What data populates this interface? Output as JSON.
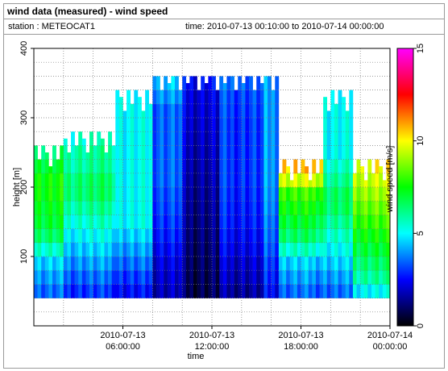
{
  "window": {
    "title": "wind data (measured) - wind speed",
    "station_label": "station : METEOCAT1",
    "time_label": "time: 2010-07-13 00:10:00 to 2010-07-14 00:00:00"
  },
  "chart_data": {
    "type": "heatmap",
    "title": "wind data (measured) - wind speed",
    "xlabel": "time",
    "ylabel": "height [m]",
    "colorbar_label": "wind speed [m/s]",
    "x_ticks": [
      {
        "value": 6,
        "line1": "2010-07-13",
        "line2": "06:00:00"
      },
      {
        "value": 12,
        "line1": "2010-07-13",
        "line2": "12:00:00"
      },
      {
        "value": 18,
        "line1": "2010-07-13",
        "line2": "18:00:00"
      },
      {
        "value": 24,
        "line1": "2010-07-14",
        "line2": "00:00:00"
      }
    ],
    "x_range_hours": [
      0,
      24
    ],
    "y_ticks": [
      100,
      200,
      300,
      400
    ],
    "ylim": [
      0,
      400
    ],
    "colorbar_ticks": [
      0,
      5,
      10,
      15
    ],
    "clim": [
      0,
      15
    ],
    "grid": true,
    "colormap": [
      "#000000",
      "#0000ff",
      "#00ffff",
      "#00ff00",
      "#ffff00",
      "#ff0000",
      "#ff00ff"
    ],
    "height_levels_m": [
      50,
      70,
      90,
      110,
      130,
      150,
      170,
      190,
      210,
      230,
      250,
      270,
      290,
      310,
      330,
      350
    ],
    "time_blocks": [
      {
        "from": 0.0,
        "to": 2.0,
        "top_height": 250,
        "speed_by_level": [
          3.5,
          4.0,
          4.5,
          5.5,
          6.5,
          7.0,
          7.2,
          7.5,
          7.5,
          7.0,
          6.5
        ]
      },
      {
        "from": 2.0,
        "to": 5.5,
        "top_height": 270,
        "speed_by_level": [
          3.0,
          3.5,
          4.0,
          4.5,
          5.0,
          5.5,
          6.0,
          6.5,
          6.5,
          6.0,
          6.0,
          5.5
        ]
      },
      {
        "from": 5.5,
        "to": 8.0,
        "top_height": 330,
        "speed_by_level": [
          2.5,
          3.0,
          3.5,
          4.0,
          4.5,
          5.0,
          5.0,
          5.0,
          5.0,
          5.0,
          5.0,
          5.0,
          5.0,
          5.0,
          5.0
        ]
      },
      {
        "from": 8.0,
        "to": 10.0,
        "top_height": 360,
        "speed_by_level": [
          1.8,
          2.0,
          2.2,
          2.5,
          2.8,
          3.0,
          3.2,
          3.3,
          3.5,
          3.5,
          3.5,
          3.5,
          3.5,
          3.5,
          4.0,
          4.5
        ]
      },
      {
        "from": 10.0,
        "to": 12.5,
        "top_height": 360,
        "speed_by_level": [
          0.8,
          0.9,
          1.0,
          1.1,
          1.2,
          1.3,
          1.4,
          1.5,
          1.6,
          1.7,
          1.8,
          1.9,
          2.0,
          2.1,
          2.2,
          2.5
        ]
      },
      {
        "from": 12.5,
        "to": 15.5,
        "top_height": 360,
        "speed_by_level": [
          1.5,
          1.8,
          2.0,
          2.3,
          2.5,
          2.7,
          2.8,
          2.9,
          3.0,
          3.0,
          3.0,
          3.0,
          3.0,
          3.1,
          3.2,
          3.5
        ]
      },
      {
        "from": 15.5,
        "to": 16.5,
        "top_height": 360,
        "speed_by_level": [
          2.5,
          2.8,
          3.0,
          3.3,
          3.5,
          3.6,
          3.8,
          3.9,
          4.0,
          4.0,
          4.0,
          4.0,
          4.0,
          4.0,
          4.0,
          4.0
        ]
      },
      {
        "from": 16.5,
        "to": 19.5,
        "top_height": 230,
        "speed_by_level": [
          3.5,
          4.0,
          4.5,
          5.5,
          6.5,
          7.0,
          7.5,
          8.0,
          9.5,
          10.5
        ]
      },
      {
        "from": 19.5,
        "to": 21.5,
        "top_height": 330,
        "speed_by_level": [
          3.5,
          4.0,
          4.5,
          5.0,
          5.5,
          6.0,
          6.5,
          6.5,
          6.0,
          5.5,
          5.0,
          5.0,
          5.0,
          5.0,
          5.0
        ]
      },
      {
        "from": 21.5,
        "to": 24.0,
        "top_height": 230,
        "speed_by_level": [
          5.0,
          6.0,
          6.5,
          7.0,
          7.5,
          8.0,
          8.5,
          9.0,
          9.5,
          10.0
        ]
      }
    ]
  }
}
